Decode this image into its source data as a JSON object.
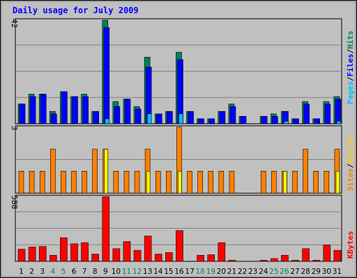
{
  "chart_data": {
    "type": "bar",
    "title": "Daily usage for July 2009",
    "days": [
      "1",
      "2",
      "3",
      "4",
      "5",
      "6",
      "7",
      "8",
      "9",
      "10",
      "11",
      "12",
      "13",
      "14",
      "15",
      "16",
      "17",
      "18",
      "19",
      "20",
      "21",
      "22",
      "23",
      "24",
      "25",
      "26",
      "27",
      "28",
      "29",
      "30",
      "31"
    ],
    "weekend_days": [
      "4",
      "5",
      "11",
      "12",
      "18",
      "19",
      "25",
      "26"
    ],
    "panels": [
      {
        "max_label": "42",
        "ymax": 42,
        "legend": [
          "Pages",
          "Files",
          "Hits"
        ],
        "series": [
          {
            "name": "Hits",
            "color": "#00805c",
            "values": [
              8,
              12,
              12,
              5,
              13,
              11,
              12,
              5,
              42,
              9,
              10,
              7,
              27,
              4,
              5,
              29,
              5,
              2,
              2,
              5,
              8,
              3,
              0,
              3,
              4,
              5,
              2,
              9,
              2,
              9,
              11
            ]
          },
          {
            "name": "Files",
            "color": "#0000ff",
            "values": [
              8,
              11,
              12,
              4,
              13,
              11,
              11,
              5,
              39,
              7,
              10,
              6,
              23,
              4,
              5,
              26,
              5,
              2,
              2,
              5,
              7,
              3,
              0,
              3,
              3,
              5,
              2,
              8,
              2,
              8,
              10
            ]
          },
          {
            "name": "Pages",
            "color": "#00c0ff",
            "values": [
              0,
              0,
              0,
              0,
              0,
              0,
              0,
              0,
              2,
              0,
              0,
              0,
              4,
              0,
              0,
              4,
              0,
              0,
              0,
              0,
              0,
              0,
              0,
              0,
              0,
              1,
              0,
              0,
              0,
              0,
              1
            ]
          }
        ]
      },
      {
        "max_label": "3",
        "ymax": 3,
        "legend": [
          "Sites",
          "Visits"
        ],
        "series": [
          {
            "name": "Visits",
            "color": "#ff8000",
            "values": [
              1,
              1,
              1,
              2,
              1,
              1,
              1,
              2,
              2,
              1,
              1,
              1,
              2,
              1,
              1,
              3,
              1,
              1,
              1,
              1,
              1,
              0,
              0,
              1,
              1,
              1,
              1,
              2,
              1,
              1,
              2
            ]
          },
          {
            "name": "Sites",
            "color": "#ffff00",
            "values": [
              0,
              0,
              0,
              0,
              0,
              0,
              0,
              0,
              2,
              0,
              0,
              0,
              1,
              0,
              0,
              1,
              0,
              0,
              0,
              0,
              0,
              0,
              0,
              0,
              0,
              1,
              0,
              0,
              0,
              0,
              1
            ]
          }
        ]
      },
      {
        "max_label": "588",
        "ymax": 588,
        "legend": [
          "KBytes"
        ],
        "series": [
          {
            "name": "KBytes",
            "color": "#ff0000",
            "values": [
              110,
              130,
              135,
              55,
              215,
              160,
              170,
              65,
              588,
              115,
              180,
              100,
              230,
              65,
              80,
              280,
              0,
              55,
              60,
              170,
              10,
              0,
              0,
              10,
              25,
              55,
              10,
              115,
              10,
              150,
              100
            ]
          }
        ]
      }
    ]
  },
  "colors": {
    "legend_pages": "#00c0ff",
    "legend_files": "#0000ff",
    "legend_hits": "#00805c",
    "legend_sites": "#ffcc00",
    "legend_visits": "#ff8000",
    "legend_kbytes": "#ff0000",
    "slash": "#000000",
    "day_weekday": "#000000",
    "day_weekend": "#00805c"
  }
}
